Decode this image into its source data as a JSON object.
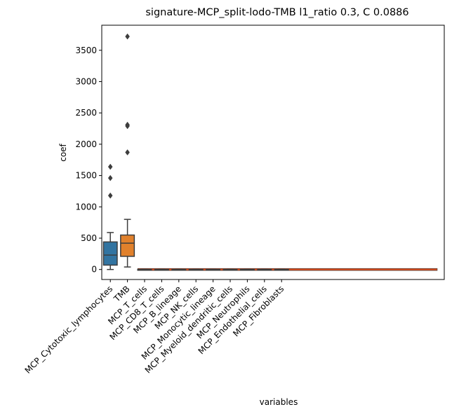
{
  "chart_data": {
    "type": "box",
    "title": "signature-MCP_split-lodo-TMB l1_ratio 0.3, C 0.0886",
    "xlabel": "variables",
    "ylabel": "coef",
    "yticks": [
      0,
      500,
      1000,
      1500,
      2000,
      2500,
      3000,
      3500
    ],
    "ylim": [
      -160,
      3900
    ],
    "grid": false,
    "categories": [
      "MCP_Cytotoxic_lymphocytes",
      "TMB",
      "MCP_T_cells",
      "MCP_CD8_T_cells",
      "MCP_B_lineage",
      "MCP_NK_cells",
      "MCP_Monocytic_lineage",
      "MCP_Myeloid_dendritic_cells",
      "MCP_Neutrophils",
      "MCP_Endothelial_cells",
      "MCP_Fibroblasts"
    ],
    "extra_slots": 9,
    "boxes": [
      {
        "category": "MCP_Cytotoxic_lymphocytes",
        "whisker_low": 0,
        "q1": 70,
        "median": 230,
        "q3": 440,
        "whisker_high": 590,
        "outliers": [
          1180,
          1460,
          1640
        ],
        "color": "#3274a1"
      },
      {
        "category": "TMB",
        "whisker_low": 40,
        "q1": 210,
        "median": 420,
        "q3": 550,
        "whisker_high": 800,
        "outliers": [
          1870,
          2290,
          2310,
          3720
        ],
        "color": "#e1812c"
      },
      {
        "category": "MCP_T_cells",
        "whisker_low": 0,
        "q1": 0,
        "median": 0,
        "q3": 0,
        "whisker_high": 0,
        "outliers": [],
        "color": "#3a923a"
      },
      {
        "category": "MCP_CD8_T_cells",
        "whisker_low": 0,
        "q1": 0,
        "median": 0,
        "q3": 0,
        "whisker_high": 0,
        "outliers": [],
        "color": "#c03d3e"
      },
      {
        "category": "MCP_B_lineage",
        "whisker_low": 0,
        "q1": 0,
        "median": 0,
        "q3": 0,
        "whisker_high": 0,
        "outliers": [],
        "color": "#9372b2"
      },
      {
        "category": "MCP_NK_cells",
        "whisker_low": 0,
        "q1": 0,
        "median": 0,
        "q3": 0,
        "whisker_high": 0,
        "outliers": [],
        "color": "#845b53"
      },
      {
        "category": "MCP_Monocytic_lineage",
        "whisker_low": 0,
        "q1": 0,
        "median": 0,
        "q3": 0,
        "whisker_high": 0,
        "outliers": [],
        "color": "#d684bd"
      },
      {
        "category": "MCP_Myeloid_dendritic_cells",
        "whisker_low": 0,
        "q1": 0,
        "median": 0,
        "q3": 0,
        "whisker_high": 0,
        "outliers": [],
        "color": "#7f7f7f"
      },
      {
        "category": "MCP_Neutrophils",
        "whisker_low": 0,
        "q1": 0,
        "median": 0,
        "q3": 0,
        "whisker_high": 0,
        "outliers": [],
        "color": "#a9aa35"
      },
      {
        "category": "MCP_Endothelial_cells",
        "whisker_low": 0,
        "q1": 0,
        "median": 0,
        "q3": 0,
        "whisker_high": 0,
        "outliers": [],
        "color": "#2ebece"
      },
      {
        "category": "MCP_Fibroblasts",
        "whisker_low": 0,
        "q1": 0,
        "median": 0,
        "q3": 0,
        "whisker_high": 0,
        "outliers": [],
        "color": "#3274a1"
      }
    ],
    "flat_band_color": "#d04a1e"
  }
}
